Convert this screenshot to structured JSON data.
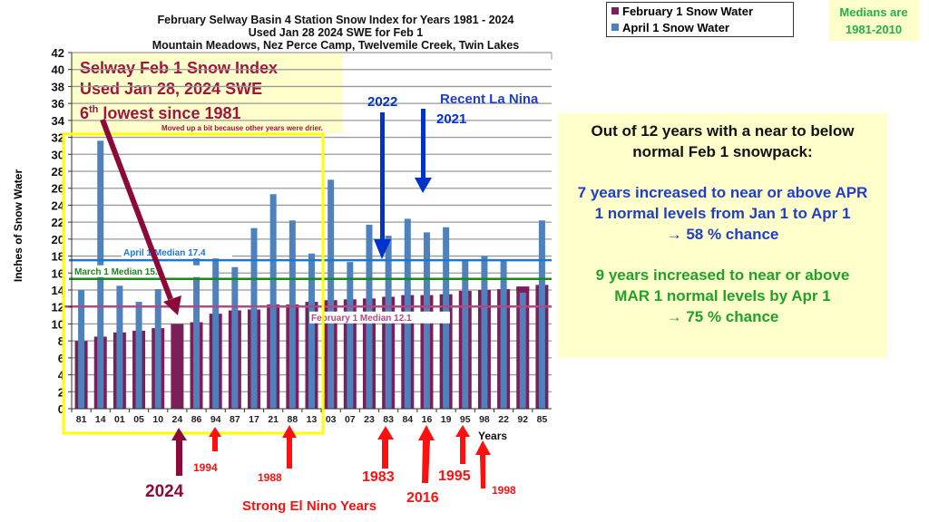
{
  "title": {
    "line1": "February Selway Basin 4 Station Snow Index for Years 1981 - 2024",
    "line2": "Used Jan 28 2024 SWE for Feb 1",
    "line3": "Mountain Meadows, Nez Perce Camp, Twelvemile Creek, Twin Lakes"
  },
  "legend": {
    "feb": "February 1 Snow Water",
    "apr": "April 1 Snow Water"
  },
  "medians_note": {
    "line1": "Medians are",
    "line2": "1981-2010"
  },
  "callout": {
    "line1": "Selway Feb 1 Snow Index",
    "line2": "Used Jan 28, 2024 SWE",
    "line3_num": "6",
    "line3_sup": "th",
    "line3_rest": " lowest since 1981",
    "note": "Moved up a bit because other years were drier."
  },
  "right_box": {
    "p1a": "Out of 12 years with a near to below",
    "p1b": "normal Feb 1 snowpack:",
    "p2a": "7 years increased to near or above APR",
    "p2b": "1 normal levels from Jan 1 to Apr 1",
    "p2c": "→ 58 % chance",
    "p3a": "9 years increased to near or above",
    "p3b": "MAR 1 normal levels by Apr 1",
    "p3c": "→ 75 % chance"
  },
  "annotations": {
    "la_nina": "Recent La Nina",
    "y2022": "2022",
    "y2021": "2021",
    "y2024": "2024",
    "y1994": "1994",
    "y1988": "1988",
    "y1983": "1983",
    "y2016": "2016",
    "y1995": "1995",
    "y1998": "1998",
    "el_nino": "Strong El Nino Years"
  },
  "colors": {
    "feb": "#7b1f5a",
    "apr": "#4f81bd",
    "apr_median": "#1f77d0",
    "mar_median": "#1a8a1a",
    "feb_median": "#b04a85",
    "red": "#ff1010",
    "blue_arrow": "#0033cc",
    "maroon": "#8b0a3a"
  },
  "chart_data": {
    "type": "bar",
    "xlabel": "Years",
    "ylabel": "Inches of Snow Water",
    "ylim": [
      0,
      42
    ],
    "yticks": [
      0,
      2,
      4,
      6,
      8,
      10,
      12,
      14,
      16,
      18,
      20,
      22,
      24,
      26,
      28,
      30,
      32,
      34,
      36,
      38,
      40,
      42
    ],
    "grid": true,
    "categories": [
      "81",
      "14",
      "01",
      "05",
      "10",
      "24",
      "86",
      "94",
      "87",
      "17",
      "21",
      "88",
      "13",
      "03",
      "07",
      "23",
      "83",
      "84",
      "16",
      "19",
      "95",
      "98",
      "22",
      "92",
      "85"
    ],
    "series": [
      {
        "name": "February 1 Snow Water",
        "values": [
          8.0,
          8.5,
          9.0,
          9.2,
          9.5,
          10.0,
          10.2,
          11.2,
          11.6,
          11.7,
          12.3,
          12.3,
          12.6,
          12.8,
          12.9,
          13.0,
          13.2,
          13.4,
          13.4,
          13.5,
          13.9,
          14.0,
          14.1,
          14.4,
          14.6
        ]
      },
      {
        "name": "April 1 Snow Water",
        "values": [
          14.0,
          31.6,
          14.5,
          12.6,
          14.1,
          null,
          18.6,
          17.8,
          16.7,
          21.3,
          25.3,
          22.2,
          18.3,
          27.0,
          17.3,
          21.7,
          20.4,
          22.4,
          20.8,
          21.4,
          17.6,
          18.0,
          17.6,
          13.7,
          22.2
        ]
      }
    ],
    "medians": [
      {
        "label": "April 1 Median 17.4",
        "value": 17.4
      },
      {
        "label": "March 1 Median 15.2",
        "value": 15.2
      },
      {
        "label": "February 1 Median 12.1",
        "value": 12.1
      }
    ],
    "legend_position": "top-right"
  }
}
